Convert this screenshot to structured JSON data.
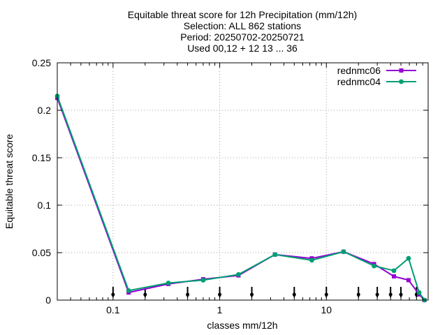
{
  "chart_data": {
    "type": "line",
    "title_lines": [
      "Equitable threat score  for 12h Precipitation (mm/12h)",
      "Selection: ALL    862 stations",
      "Period: 20250702-20250721",
      "Used 00,12 + 12 13 ... 36"
    ],
    "xlabel": "classes mm/12h",
    "ylabel": "Equitable threat score",
    "x_scale": "log",
    "xlim": [
      0.03,
      90
    ],
    "ylim": [
      0,
      0.25
    ],
    "x_ticks": [
      0.1,
      1,
      10
    ],
    "x_tick_labels": [
      "0.1",
      "1",
      "10"
    ],
    "y_ticks": [
      0,
      0.05,
      0.1,
      0.15,
      0.2,
      0.25
    ],
    "y_tick_labels": [
      "0",
      "0.05",
      "0.1",
      "0.15",
      "0.2",
      "0.25"
    ],
    "grid": true,
    "legend_position": "top-right",
    "threshold_markers": [
      0.1,
      0.2,
      0.5,
      1,
      2,
      5,
      10,
      20,
      30,
      40,
      50,
      70
    ],
    "x": [
      0.03,
      0.14,
      0.33,
      0.7,
      1.5,
      3.3,
      7.3,
      14.5,
      28,
      43,
      59,
      74,
      83
    ],
    "series": [
      {
        "name": "rednmc06",
        "color": "#9400d3",
        "values": [
          0.213,
          0.008,
          0.017,
          0.022,
          0.026,
          0.048,
          0.044,
          0.051,
          0.038,
          0.025,
          0.021,
          0.006,
          0.0
        ]
      },
      {
        "name": "rednmc04",
        "color": "#009e73",
        "values": [
          0.215,
          0.01,
          0.018,
          0.021,
          0.027,
          0.048,
          0.042,
          0.051,
          0.036,
          0.031,
          0.044,
          0.008,
          0.0
        ]
      }
    ]
  }
}
